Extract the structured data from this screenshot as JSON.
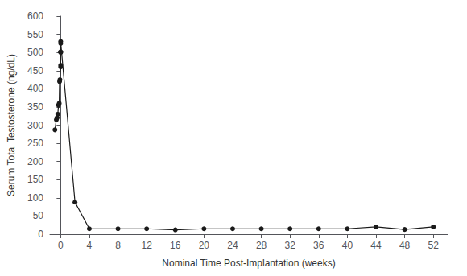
{
  "chart_data": {
    "type": "line",
    "x": [
      -0.8,
      -0.6,
      -0.5,
      -0.4,
      -0.3,
      -0.2,
      -0.15,
      -0.1,
      0,
      0,
      0,
      0,
      0,
      0,
      2,
      4,
      8,
      12,
      16,
      20,
      24,
      28,
      32,
      36,
      40,
      44,
      48,
      52
    ],
    "values": [
      287,
      315,
      320,
      330,
      355,
      360,
      420,
      425,
      460,
      465,
      500,
      502,
      525,
      530,
      88,
      15,
      15,
      15,
      12,
      15,
      15,
      15,
      15,
      15,
      15,
      20,
      13,
      20
    ],
    "xlabel": "Nominal Time Post-Implantation (weeks)",
    "ylabel": "Serum Total Testosterone (ng/dL)",
    "xlim": [
      -1.5,
      54
    ],
    "ylim": [
      0,
      600
    ],
    "xticks": [
      0,
      4,
      8,
      12,
      16,
      20,
      24,
      28,
      32,
      36,
      40,
      44,
      48,
      52
    ],
    "yticks": [
      0,
      50,
      100,
      150,
      200,
      250,
      300,
      350,
      400,
      450,
      500,
      550,
      600
    ],
    "color": "#1a1a1a",
    "marker": "circle",
    "grid": false
  }
}
